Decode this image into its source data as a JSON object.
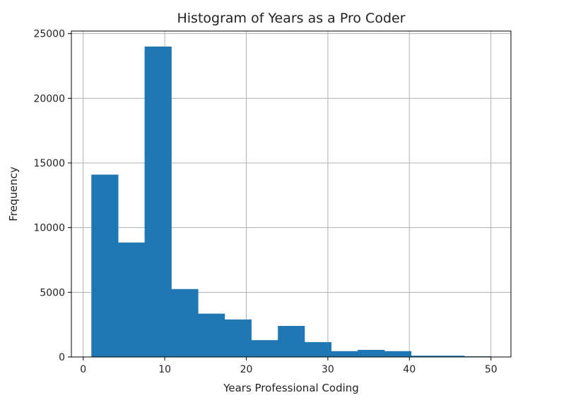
{
  "chart_data": {
    "type": "bar",
    "title": "Histogram of Years as a Pro Coder",
    "xlabel": "Years Professional Coding",
    "ylabel": "Frequency",
    "xlim": [
      -1.45,
      52.45
    ],
    "ylim": [
      0,
      25200
    ],
    "grid": true,
    "color": "#1f77b4",
    "x_ticks": [
      0,
      10,
      20,
      30,
      40,
      50
    ],
    "y_ticks": [
      0,
      5000,
      10000,
      15000,
      20000,
      25000
    ],
    "bin_edges": [
      1,
      4.27,
      7.53,
      10.8,
      14.07,
      17.33,
      20.6,
      23.87,
      27.13,
      30.4,
      33.67,
      36.93,
      40.2,
      43.47,
      46.73,
      50
    ],
    "values": [
      14100,
      8850,
      24000,
      5250,
      3350,
      2900,
      1300,
      2400,
      1150,
      450,
      550,
      450,
      100,
      100,
      50
    ]
  }
}
